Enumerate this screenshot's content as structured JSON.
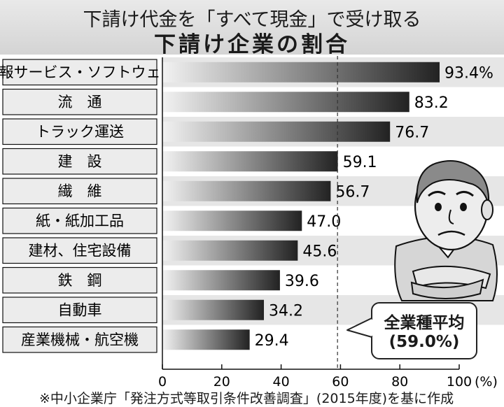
{
  "title": {
    "line1": "下請け代金を「すべて現金」で受け取る",
    "line2": "下請け企業の割合"
  },
  "chart_data": {
    "type": "bar",
    "orientation": "horizontal",
    "categories": [
      "情報サービス・ソフトウェア",
      "流　通",
      "トラック運送",
      "建　設",
      "繊　維",
      "紙・紙加工品",
      "建材、住宅設備",
      "鉄　鋼",
      "自動車",
      "産業機械・航空機"
    ],
    "values": [
      93.4,
      83.2,
      76.7,
      59.1,
      56.7,
      47.0,
      45.6,
      39.6,
      34.2,
      29.4
    ],
    "value_labels": [
      "93.4%",
      "83.2",
      "76.7",
      "59.1",
      "56.7",
      "47.0",
      "45.6",
      "39.6",
      "34.2",
      "29.4"
    ],
    "xlim": [
      0,
      100
    ],
    "x_ticks": [
      "0",
      "20",
      "40",
      "60",
      "80",
      "100"
    ],
    "unit_label": "(%)",
    "reference_line": 59.0,
    "grid": false,
    "colors": {
      "bar_dark": "#222222",
      "bar_light": "#f2f2f2",
      "band": "#e6e6e6"
    }
  },
  "average_callout": {
    "label": "全業種平均",
    "value": "(59.0%)"
  },
  "source": "※中小企業庁「発注方式等取引条件改善調査」(2015年度)を基に作成",
  "illustration": {
    "icon": "worried-man-icon"
  }
}
